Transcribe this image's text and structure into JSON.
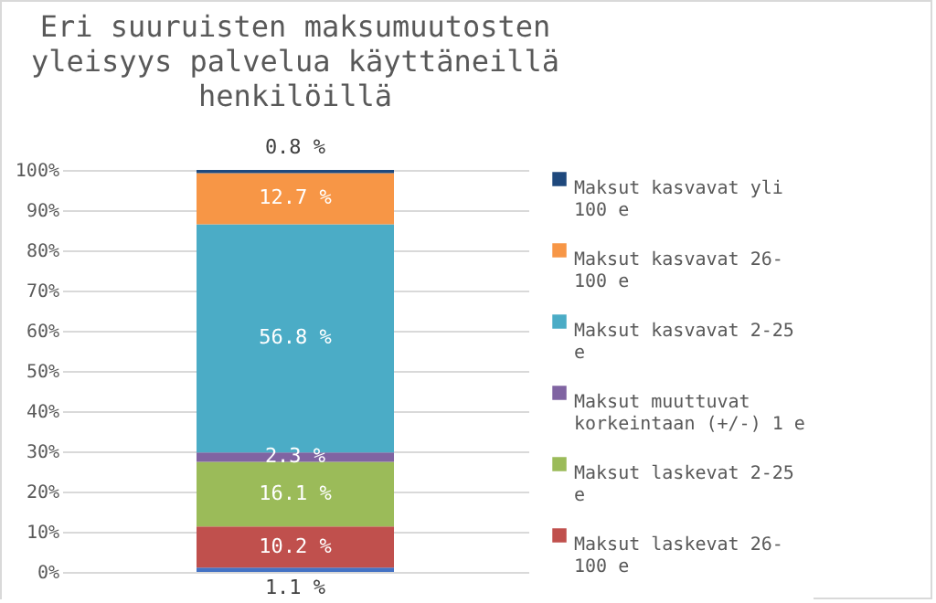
{
  "chart_data": {
    "type": "bar",
    "title": "Eri suuruisten maksumuutosten yleisyys palvelua käyttäneillä henkilöillä",
    "categories": [
      null
    ],
    "stacked": true,
    "ylim": [
      0,
      100
    ],
    "yticks": [
      {
        "value": 0,
        "label": "0%"
      },
      {
        "value": 10,
        "label": "10%"
      },
      {
        "value": 20,
        "label": "20%"
      },
      {
        "value": 30,
        "label": "30%"
      },
      {
        "value": 40,
        "label": "40%"
      },
      {
        "value": 50,
        "label": "50%"
      },
      {
        "value": 60,
        "label": "60%"
      },
      {
        "value": 70,
        "label": "70%"
      },
      {
        "value": 80,
        "label": "80%"
      },
      {
        "value": 90,
        "label": "90%"
      },
      {
        "value": 100,
        "label": "100%"
      }
    ],
    "grid": "y",
    "legend": "right",
    "series": [
      {
        "color": "#4472c4",
        "values": [
          1.1
        ],
        "value_labels": [
          "1.1 %"
        ]
      },
      {
        "name": "Maksut laskevat 26-100 e",
        "color": "#c0504d",
        "values": [
          10.2
        ],
        "value_labels": [
          "10.2 %"
        ]
      },
      {
        "name": "Maksut laskevat 2-25 e",
        "color": "#9bbb59",
        "values": [
          16.1
        ],
        "value_labels": [
          "16.1 %"
        ]
      },
      {
        "name": "Maksut muuttuvat korkeintaan (+/-) 1 e",
        "color": "#8064a2",
        "values": [
          2.3
        ],
        "value_labels": [
          "2.3 %"
        ]
      },
      {
        "name": "Maksut kasvavat 2-25 e",
        "color": "#4bacc6",
        "values": [
          56.8
        ],
        "value_labels": [
          "56.8 %"
        ]
      },
      {
        "name": "Maksut kasvavat 26-100 e",
        "color": "#f79646",
        "values": [
          12.7
        ],
        "value_labels": [
          "12.7 %"
        ]
      },
      {
        "name": "Maksut kasvavat yli 100 e",
        "color": "#1f497d",
        "values": [
          0.8
        ],
        "value_labels": [
          "0.8 %"
        ]
      }
    ]
  }
}
